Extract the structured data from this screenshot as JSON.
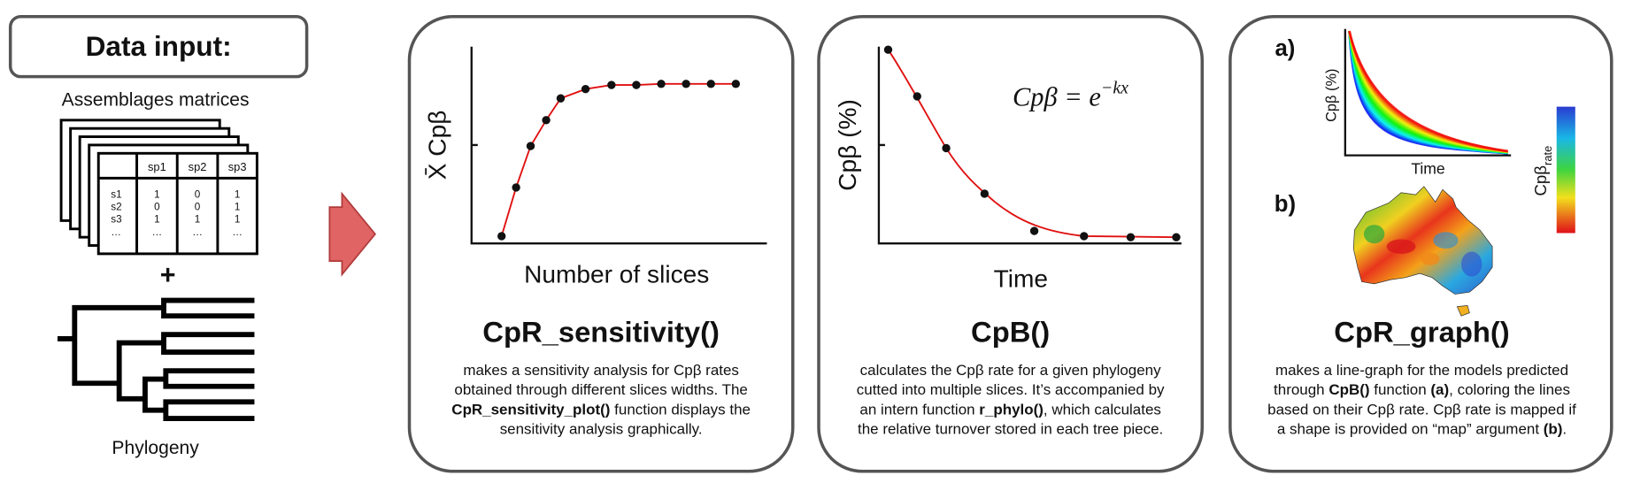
{
  "data_input": {
    "title": "Data input:",
    "matrices_label": "Assemblages matrices",
    "table": {
      "header": [
        "sp1",
        "sp2",
        "sp3"
      ],
      "rows": [
        [
          "s1",
          "1",
          "0",
          "1"
        ],
        [
          "s2",
          "0",
          "0",
          "1"
        ],
        [
          "s3",
          "1",
          "1",
          "1"
        ],
        [
          "…",
          "…",
          "…",
          "…"
        ]
      ]
    },
    "plus": "+",
    "phylogeny_label": "Phylogeny"
  },
  "panels": [
    {
      "x_label": "Number of slices",
      "y_label": "X̄ Cpβ",
      "function": "CpR_sensitivity()",
      "description": [
        [
          {
            "text": "makes a sensitivity analysis for Cpβ rates",
            "bold": false
          }
        ],
        [
          {
            "text": "obtained through different slices widths. The",
            "bold": false
          }
        ],
        [
          {
            "text": "CpR_sensitivity_plot()",
            "bold": true
          },
          {
            "text": " function displays the",
            "bold": false
          }
        ],
        [
          {
            "text": "sensitivity analysis graphically.",
            "bold": false
          }
        ]
      ]
    },
    {
      "x_label": "Time",
      "y_label": "Cpβ (%)",
      "formula": {
        "base": "Cpβ = e",
        "exponent": "−kx"
      },
      "function": "CpB()",
      "description": [
        [
          {
            "text": "calculates the Cpβ rate for a given phylogeny",
            "bold": false
          }
        ],
        [
          {
            "text": "cutted into multiple slices. It’s accompanied by",
            "bold": false
          }
        ],
        [
          {
            "text": "an intern function ",
            "bold": false
          },
          {
            "text": "r_phylo()",
            "bold": true
          },
          {
            "text": ", which calculates",
            "bold": false
          }
        ],
        [
          {
            "text": "the relative turnover stored in each tree piece.",
            "bold": false
          }
        ]
      ]
    },
    {
      "sub_a": "a)",
      "a_y_label": "Cpβ (%)",
      "a_x_label": "Time",
      "colorbar_label": {
        "base": "Cpβ",
        "subscript": "rate"
      },
      "sub_b": "b)",
      "function": "CpR_graph()",
      "description": [
        [
          {
            "text": "makes a line-graph for the models predicted",
            "bold": false
          }
        ],
        [
          {
            "text": "through ",
            "bold": false
          },
          {
            "text": "CpB()",
            "bold": true
          },
          {
            "text": " function ",
            "bold": false
          },
          {
            "text": "(a)",
            "bold": true
          },
          {
            "text": ", coloring the lines",
            "bold": false
          }
        ],
        [
          {
            "text": "based on their Cpβ rate. Cpβ rate is mapped if",
            "bold": false
          }
        ],
        [
          {
            "text": "a shape is provided on “map” argument ",
            "bold": false
          },
          {
            "text": "(b)",
            "bold": true
          },
          {
            "text": ".",
            "bold": false
          }
        ]
      ]
    }
  ]
}
